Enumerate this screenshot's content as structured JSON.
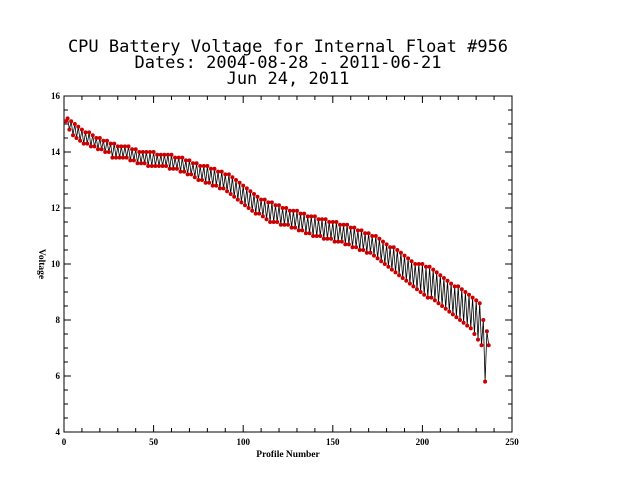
{
  "chart_data": {
    "type": "line",
    "title_lines": [
      "CPU Battery Voltage for Internal Float #956",
      "Dates:  2004-08-28 -  2011-06-21",
      "Jun 24, 2011"
    ],
    "xlabel": "Profile Number",
    "ylabel": "Voltage",
    "xlim": [
      0,
      250
    ],
    "ylim": [
      4,
      16
    ],
    "xticks": [
      0,
      50,
      100,
      150,
      200,
      250
    ],
    "yticks": [
      4,
      6,
      8,
      10,
      12,
      14,
      16
    ],
    "marker_color": "#cc0000",
    "line_color": "#000000",
    "series": [
      {
        "values": [
          [
            1,
            15.1
          ],
          [
            2,
            15.2
          ],
          [
            3,
            14.8
          ],
          [
            4,
            15.1
          ],
          [
            5,
            14.6
          ],
          [
            6,
            15.0
          ],
          [
            7,
            14.5
          ],
          [
            8,
            14.9
          ],
          [
            9,
            14.4
          ],
          [
            10,
            14.8
          ],
          [
            11,
            14.3
          ],
          [
            12,
            14.7
          ],
          [
            13,
            14.3
          ],
          [
            14,
            14.7
          ],
          [
            15,
            14.2
          ],
          [
            16,
            14.6
          ],
          [
            17,
            14.2
          ],
          [
            18,
            14.5
          ],
          [
            19,
            14.1
          ],
          [
            20,
            14.5
          ],
          [
            21,
            14.1
          ],
          [
            22,
            14.4
          ],
          [
            23,
            14.0
          ],
          [
            24,
            14.4
          ],
          [
            25,
            14.0
          ],
          [
            26,
            14.3
          ],
          [
            27,
            13.8
          ],
          [
            28,
            14.3
          ],
          [
            29,
            13.8
          ],
          [
            30,
            14.2
          ],
          [
            31,
            13.8
          ],
          [
            32,
            14.2
          ],
          [
            33,
            13.8
          ],
          [
            34,
            14.2
          ],
          [
            35,
            13.8
          ],
          [
            36,
            14.2
          ],
          [
            37,
            13.7
          ],
          [
            38,
            14.1
          ],
          [
            39,
            13.7
          ],
          [
            40,
            14.1
          ],
          [
            41,
            13.6
          ],
          [
            42,
            14.0
          ],
          [
            43,
            13.6
          ],
          [
            44,
            14.0
          ],
          [
            45,
            13.6
          ],
          [
            46,
            14.0
          ],
          [
            47,
            13.5
          ],
          [
            48,
            14.0
          ],
          [
            49,
            13.5
          ],
          [
            50,
            14.0
          ],
          [
            51,
            13.5
          ],
          [
            52,
            13.9
          ],
          [
            53,
            13.5
          ],
          [
            54,
            13.9
          ],
          [
            55,
            13.5
          ],
          [
            56,
            13.9
          ],
          [
            57,
            13.5
          ],
          [
            58,
            13.9
          ],
          [
            59,
            13.4
          ],
          [
            60,
            13.9
          ],
          [
            61,
            13.4
          ],
          [
            62,
            13.8
          ],
          [
            63,
            13.4
          ],
          [
            64,
            13.8
          ],
          [
            65,
            13.3
          ],
          [
            66,
            13.8
          ],
          [
            67,
            13.3
          ],
          [
            68,
            13.7
          ],
          [
            69,
            13.2
          ],
          [
            70,
            13.7
          ],
          [
            71,
            13.2
          ],
          [
            72,
            13.6
          ],
          [
            73,
            13.1
          ],
          [
            74,
            13.6
          ],
          [
            75,
            13.0
          ],
          [
            76,
            13.5
          ],
          [
            77,
            13.0
          ],
          [
            78,
            13.5
          ],
          [
            79,
            12.9
          ],
          [
            80,
            13.5
          ],
          [
            81,
            12.9
          ],
          [
            82,
            13.4
          ],
          [
            83,
            12.8
          ],
          [
            84,
            13.4
          ],
          [
            85,
            12.8
          ],
          [
            86,
            13.3
          ],
          [
            87,
            12.7
          ],
          [
            88,
            13.3
          ],
          [
            89,
            12.7
          ],
          [
            90,
            13.2
          ],
          [
            91,
            12.6
          ],
          [
            92,
            13.2
          ],
          [
            93,
            12.5
          ],
          [
            94,
            13.1
          ],
          [
            95,
            12.4
          ],
          [
            96,
            13.0
          ],
          [
            97,
            12.3
          ],
          [
            98,
            12.9
          ],
          [
            99,
            12.2
          ],
          [
            100,
            12.8
          ],
          [
            101,
            12.1
          ],
          [
            102,
            12.7
          ],
          [
            103,
            12.0
          ],
          [
            104,
            12.6
          ],
          [
            105,
            11.9
          ],
          [
            106,
            12.5
          ],
          [
            107,
            11.8
          ],
          [
            108,
            12.4
          ],
          [
            109,
            11.8
          ],
          [
            110,
            12.3
          ],
          [
            111,
            11.7
          ],
          [
            112,
            12.3
          ],
          [
            113,
            11.6
          ],
          [
            114,
            12.2
          ],
          [
            115,
            11.5
          ],
          [
            116,
            12.2
          ],
          [
            117,
            11.5
          ],
          [
            118,
            12.1
          ],
          [
            119,
            11.5
          ],
          [
            120,
            12.1
          ],
          [
            121,
            11.4
          ],
          [
            122,
            12.0
          ],
          [
            123,
            11.4
          ],
          [
            124,
            12.0
          ],
          [
            125,
            11.4
          ],
          [
            126,
            11.9
          ],
          [
            127,
            11.3
          ],
          [
            128,
            11.9
          ],
          [
            129,
            11.3
          ],
          [
            130,
            11.9
          ],
          [
            131,
            11.2
          ],
          [
            132,
            11.8
          ],
          [
            133,
            11.2
          ],
          [
            134,
            11.8
          ],
          [
            135,
            11.1
          ],
          [
            136,
            11.7
          ],
          [
            137,
            11.1
          ],
          [
            138,
            11.7
          ],
          [
            139,
            11.0
          ],
          [
            140,
            11.7
          ],
          [
            141,
            11.0
          ],
          [
            142,
            11.6
          ],
          [
            143,
            11.0
          ],
          [
            144,
            11.6
          ],
          [
            145,
            10.9
          ],
          [
            146,
            11.6
          ],
          [
            147,
            10.9
          ],
          [
            148,
            11.5
          ],
          [
            149,
            10.9
          ],
          [
            150,
            11.5
          ],
          [
            151,
            10.8
          ],
          [
            152,
            11.5
          ],
          [
            153,
            10.8
          ],
          [
            154,
            11.4
          ],
          [
            155,
            10.8
          ],
          [
            156,
            11.4
          ],
          [
            157,
            10.7
          ],
          [
            158,
            11.4
          ],
          [
            159,
            10.7
          ],
          [
            160,
            11.3
          ],
          [
            161,
            10.6
          ],
          [
            162,
            11.3
          ],
          [
            163,
            10.6
          ],
          [
            164,
            11.2
          ],
          [
            165,
            10.5
          ],
          [
            166,
            11.2
          ],
          [
            167,
            10.5
          ],
          [
            168,
            11.1
          ],
          [
            169,
            10.4
          ],
          [
            170,
            11.1
          ],
          [
            171,
            10.4
          ],
          [
            172,
            11.0
          ],
          [
            173,
            10.3
          ],
          [
            174,
            11.0
          ],
          [
            175,
            10.2
          ],
          [
            176,
            10.9
          ],
          [
            177,
            10.1
          ],
          [
            178,
            10.8
          ],
          [
            179,
            10.0
          ],
          [
            180,
            10.7
          ],
          [
            181,
            9.9
          ],
          [
            182,
            10.6
          ],
          [
            183,
            9.8
          ],
          [
            184,
            10.6
          ],
          [
            185,
            9.7
          ],
          [
            186,
            10.5
          ],
          [
            187,
            9.6
          ],
          [
            188,
            10.4
          ],
          [
            189,
            9.5
          ],
          [
            190,
            10.3
          ],
          [
            191,
            9.4
          ],
          [
            192,
            10.2
          ],
          [
            193,
            9.3
          ],
          [
            194,
            10.1
          ],
          [
            195,
            9.2
          ],
          [
            196,
            10.0
          ],
          [
            197,
            9.1
          ],
          [
            198,
            10.0
          ],
          [
            199,
            9.0
          ],
          [
            200,
            10.0
          ],
          [
            201,
            8.9
          ],
          [
            202,
            9.9
          ],
          [
            203,
            8.8
          ],
          [
            204,
            9.9
          ],
          [
            205,
            8.8
          ],
          [
            206,
            9.8
          ],
          [
            207,
            8.7
          ],
          [
            208,
            9.7
          ],
          [
            209,
            8.6
          ],
          [
            210,
            9.6
          ],
          [
            211,
            8.5
          ],
          [
            212,
            9.5
          ],
          [
            213,
            8.4
          ],
          [
            214,
            9.4
          ],
          [
            215,
            8.3
          ],
          [
            216,
            9.3
          ],
          [
            217,
            8.2
          ],
          [
            218,
            9.2
          ],
          [
            219,
            8.1
          ],
          [
            220,
            9.2
          ],
          [
            221,
            8.0
          ],
          [
            222,
            9.1
          ],
          [
            223,
            7.9
          ],
          [
            224,
            9.0
          ],
          [
            225,
            7.8
          ],
          [
            226,
            8.9
          ],
          [
            227,
            7.7
          ],
          [
            228,
            8.8
          ],
          [
            229,
            7.5
          ],
          [
            230,
            8.7
          ],
          [
            231,
            7.3
          ],
          [
            232,
            8.6
          ],
          [
            233,
            7.1
          ],
          [
            234,
            8.0
          ],
          [
            235,
            5.8
          ],
          [
            236,
            7.6
          ],
          [
            237,
            7.1
          ]
        ]
      }
    ]
  }
}
